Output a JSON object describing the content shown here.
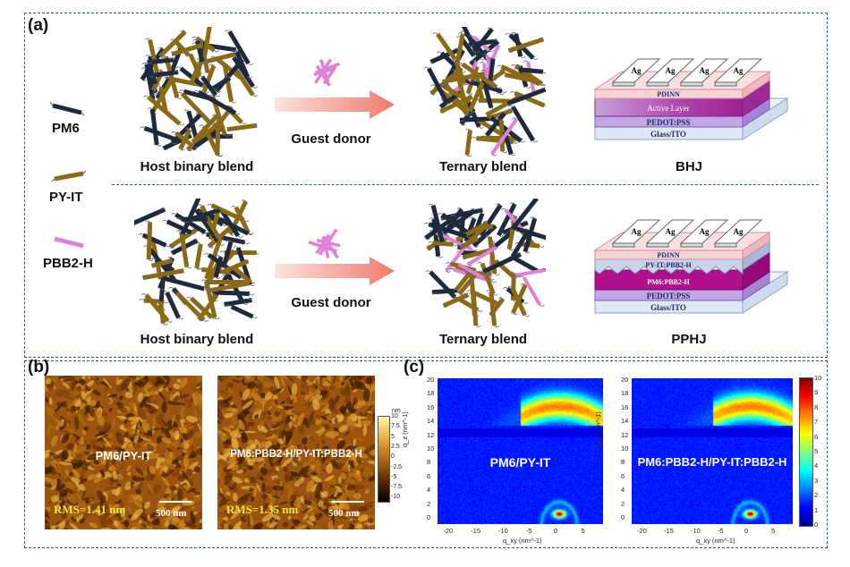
{
  "panel_a": {
    "label": "(a)",
    "legend": [
      "PM6",
      "PY-IT",
      "PBB2-H"
    ],
    "row1": {
      "host": "Host binary blend",
      "guest": "Guest donor",
      "ternary": "Ternary blend",
      "device": "BHJ"
    },
    "row2": {
      "host": "Host binary blend",
      "guest": "Guest donor",
      "ternary": "Ternary blend",
      "device": "PPHJ"
    },
    "bhj_layers": {
      "ag": "Ag",
      "pdinn": "PDINN",
      "active": "Active Layer",
      "pedot": "PEDOT:PSS",
      "glass": "Glass/ITO"
    },
    "pphj_layers": {
      "ag": "Ag",
      "pdinn": "PDINN",
      "top": "PY-IT:PBB2-H",
      "bottom": "PM6:PBB2-H",
      "pedot": "PEDOT:PSS",
      "glass": "Glass/ITO"
    }
  },
  "panel_b": {
    "label": "(b)",
    "images": [
      {
        "title": "PM6/PY-IT",
        "rms": "RMS=1.41 nm",
        "scale": "500 nm"
      },
      {
        "title": "PM6:PBB2-H/PY-IT:PBB2-H",
        "rms": "RMS=1.35 nm",
        "scale": "500 nm"
      }
    ],
    "colorbar": {
      "unit": "nm",
      "ticks": [
        "10",
        "7.5",
        "5",
        "2.5",
        "0",
        "-2.5",
        "-5",
        "-7.5",
        "-10"
      ]
    }
  },
  "panel_c": {
    "label": "(c)",
    "images": [
      {
        "title": "PM6/PY-IT"
      },
      {
        "title": "PM6:PBB2-H/PY-IT:PBB2-H"
      }
    ],
    "y_ticks": [
      "20",
      "18",
      "16",
      "14",
      "12",
      "10",
      "8",
      "6",
      "4",
      "2",
      "0"
    ],
    "x_ticks": [
      "-20",
      "-15",
      "-10",
      "-5",
      "0",
      "5"
    ],
    "ylabel": "q_z (nm^-1)",
    "xlabel": "q_xy (nm^-1)",
    "colorbar_ticks": [
      "10",
      "9",
      "8",
      "7",
      "6",
      "5",
      "4",
      "3",
      "2",
      "1",
      "0"
    ]
  }
}
